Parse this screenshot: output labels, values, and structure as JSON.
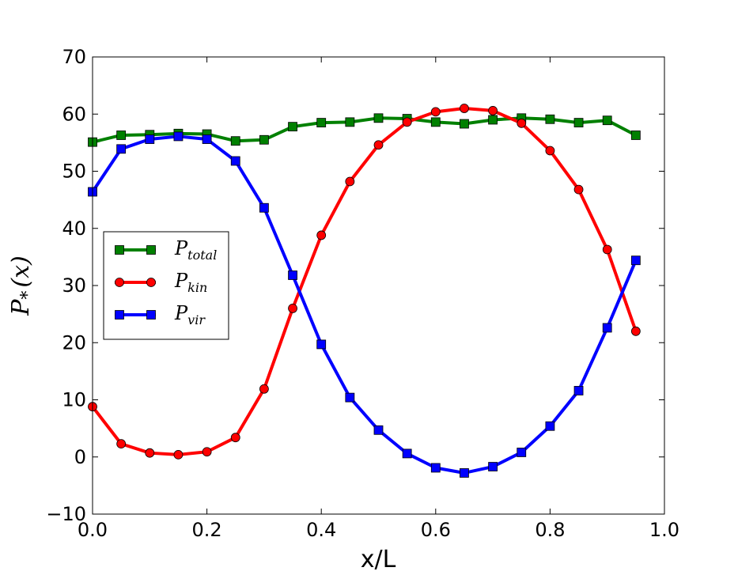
{
  "chart_data": {
    "type": "line",
    "title": "",
    "xlabel": "x/L",
    "ylabel": "P*(x)",
    "ylabel_main": "P",
    "ylabel_sub": "*",
    "ylabel_arg": "(x)",
    "xlim": [
      0.0,
      1.0
    ],
    "ylim": [
      -10,
      70
    ],
    "xticks": [
      0.0,
      0.2,
      0.4,
      0.6,
      0.8,
      1.0
    ],
    "xtick_labels": [
      "0.0",
      "0.2",
      "0.4",
      "0.6",
      "0.8",
      "1.0"
    ],
    "yticks": [
      -10,
      0,
      10,
      20,
      30,
      40,
      50,
      60,
      70
    ],
    "ytick_labels": [
      "−10",
      "0",
      "10",
      "20",
      "30",
      "40",
      "50",
      "60",
      "70"
    ],
    "grid": false,
    "legend_position": "center-left",
    "x": [
      0.0,
      0.05,
      0.1,
      0.15,
      0.2,
      0.25,
      0.3,
      0.35,
      0.4,
      0.45,
      0.5,
      0.55,
      0.6,
      0.65,
      0.7,
      0.75,
      0.8,
      0.85,
      0.9,
      0.95
    ],
    "series": [
      {
        "name": "P_total",
        "legend_main": "P",
        "legend_sub": "total",
        "color": "#008000",
        "marker": "square",
        "values": [
          55.1,
          56.3,
          56.4,
          56.6,
          56.5,
          55.3,
          55.5,
          57.8,
          58.5,
          58.6,
          59.3,
          59.2,
          58.6,
          58.3,
          59.0,
          59.3,
          59.1,
          58.5,
          58.9,
          56.3
        ]
      },
      {
        "name": "P_kin",
        "legend_main": "P",
        "legend_sub": "kin",
        "color": "#ff0000",
        "marker": "circle",
        "values": [
          8.8,
          2.3,
          0.7,
          0.4,
          0.9,
          3.4,
          11.9,
          26.0,
          38.8,
          48.2,
          54.6,
          58.6,
          60.4,
          61.0,
          60.6,
          58.4,
          53.6,
          46.8,
          36.3,
          22.0
        ]
      },
      {
        "name": "P_vir",
        "legend_main": "P",
        "legend_sub": "vir",
        "color": "#0000ff",
        "marker": "square",
        "values": [
          46.4,
          53.9,
          55.6,
          56.1,
          55.6,
          51.8,
          43.6,
          31.8,
          19.7,
          10.4,
          4.7,
          0.6,
          -1.9,
          -2.8,
          -1.7,
          0.8,
          5.4,
          11.6,
          22.6,
          34.4
        ]
      }
    ]
  }
}
